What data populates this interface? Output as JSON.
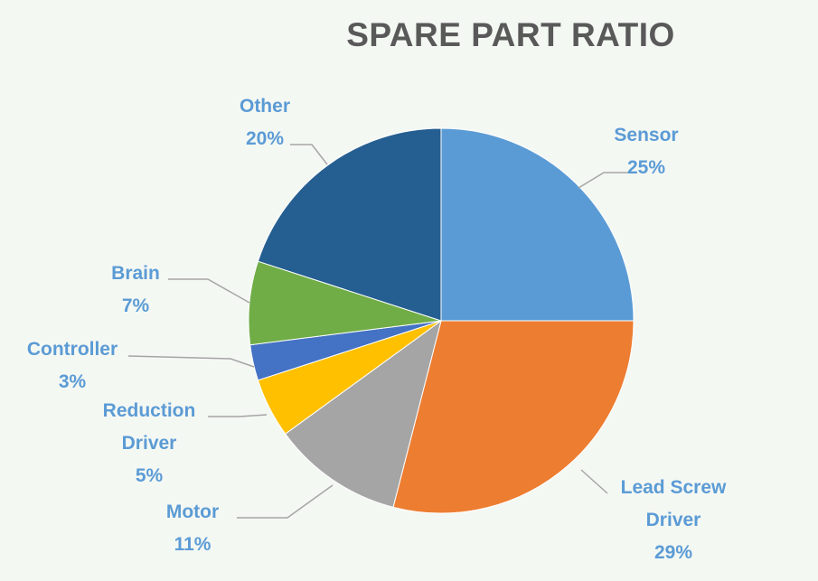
{
  "chart_data": {
    "type": "pie",
    "title": "SPARE PART RATIO",
    "slices": [
      {
        "label_lines": [
          "Sensor"
        ],
        "percent_text": "25%",
        "value": 25,
        "color": "#5b9bd5"
      },
      {
        "label_lines": [
          "Lead Screw",
          "Driver"
        ],
        "percent_text": "29%",
        "value": 29,
        "color": "#ed7d31"
      },
      {
        "label_lines": [
          "Motor"
        ],
        "percent_text": "11%",
        "value": 11,
        "color": "#a5a5a5"
      },
      {
        "label_lines": [
          "Reduction",
          "Driver"
        ],
        "percent_text": "5%",
        "value": 5,
        "color": "#ffc000"
      },
      {
        "label_lines": [
          "Controller"
        ],
        "percent_text": "3%",
        "value": 3,
        "color": "#4472c4"
      },
      {
        "label_lines": [
          "Brain"
        ],
        "percent_text": "7%",
        "value": 7,
        "color": "#70ad47"
      },
      {
        "label_lines": [
          "Other"
        ],
        "percent_text": "20%",
        "value": 20,
        "color": "#255e91"
      }
    ],
    "label_color": "#5b9bd5",
    "leader_color": "#a5a5a5",
    "legend": "none"
  }
}
